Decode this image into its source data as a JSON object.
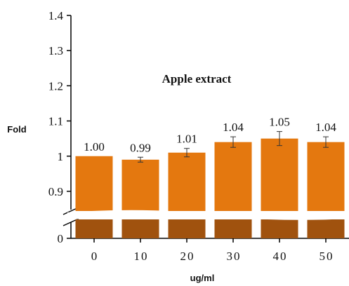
{
  "chart_data": {
    "type": "bar",
    "title": "Apple extract",
    "xlabel": "ug/ml",
    "ylabel": "Fold",
    "categories": [
      "0",
      "10",
      "20",
      "30",
      "40",
      "50"
    ],
    "series": [
      {
        "values": [
          1.0,
          0.99,
          1.01,
          1.04,
          1.05,
          1.04
        ],
        "labels": [
          "1.00",
          "0.99",
          "1.01",
          "1.04",
          "1.05",
          "1.04"
        ],
        "errors": [
          0.0,
          0.007,
          0.012,
          0.015,
          0.02,
          0.015
        ]
      }
    ],
    "y_ticks": [
      {
        "value": 1.4,
        "label": "1.4"
      },
      {
        "value": 1.3,
        "label": "1.3"
      },
      {
        "value": 1.2,
        "label": "1.2"
      },
      {
        "value": 1.1,
        "label": "1.1"
      },
      {
        "value": 1.0,
        "label": "1"
      },
      {
        "value": 0.9,
        "label": "0.9"
      },
      {
        "value": 0,
        "label": "0"
      }
    ],
    "ylim": [
      0.87,
      1.4
    ],
    "axis_break": true,
    "bar_color": "#E4780F",
    "bar_base_color": "#A0520E",
    "grid": false,
    "legend": "none"
  }
}
